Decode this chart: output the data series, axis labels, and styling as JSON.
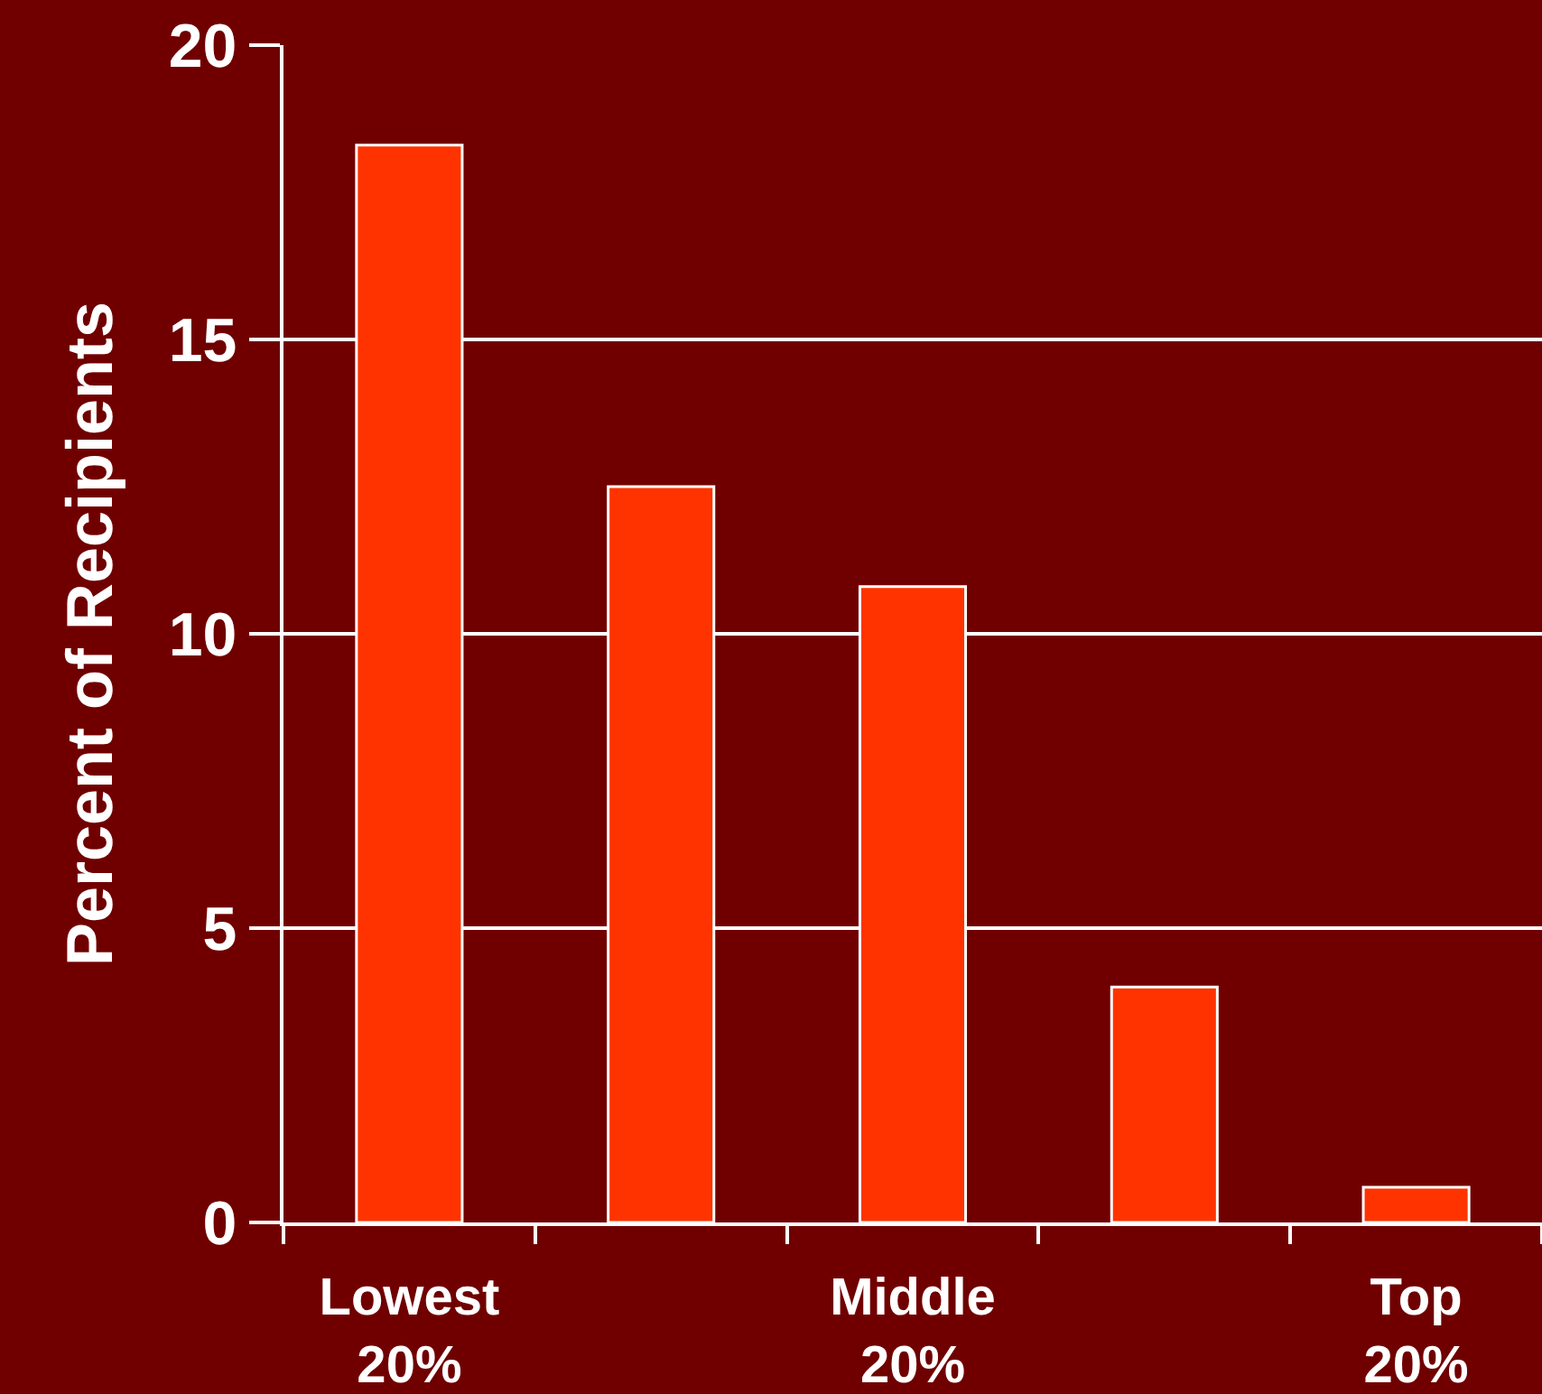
{
  "chart_data": {
    "type": "bar",
    "categories": [
      "Lowest\n20%",
      null,
      "Middle\n20%",
      null,
      "Top\n20%"
    ],
    "values": [
      18.3,
      12.5,
      10.8,
      4.0,
      0.6
    ],
    "color": "#ff3300",
    "ylabel": "Percent of Recipients",
    "ylim": [
      0,
      20
    ],
    "yticks": [
      0,
      5,
      10,
      15,
      20
    ],
    "grid": "y"
  }
}
